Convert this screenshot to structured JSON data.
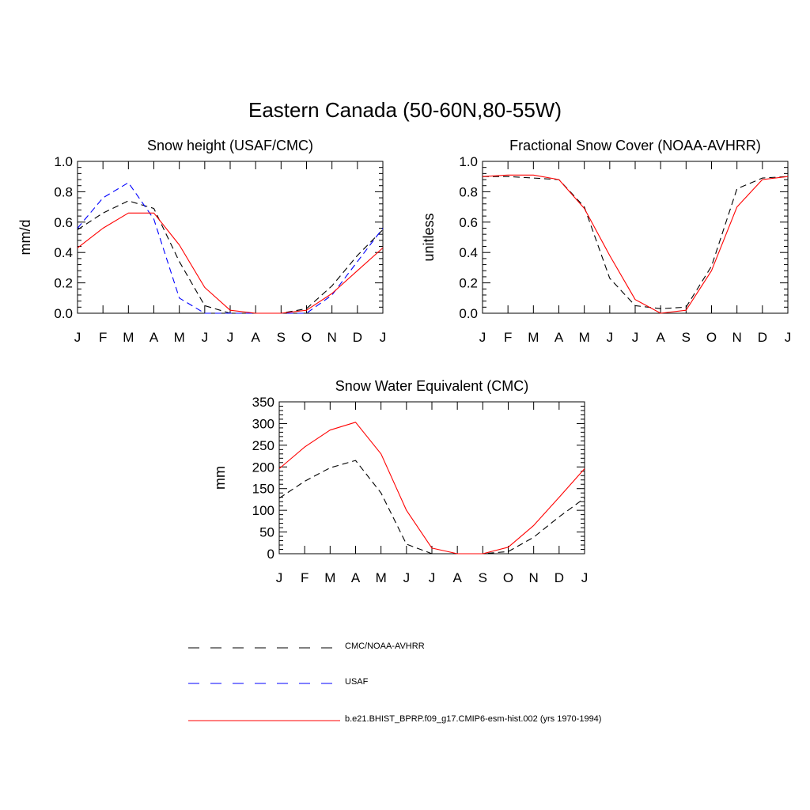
{
  "figure": {
    "title": "Eastern Canada (50-60N,80-55W)"
  },
  "legend": [
    {
      "label": "CMC/NOAA-AVHRR",
      "color": "#000000",
      "dash": "dashed"
    },
    {
      "label": "USAF",
      "color": "#0000ff",
      "dash": "dashed"
    },
    {
      "label": "b.e21.BHIST_BPRP.f09_g17.CMIP6-esm-hist.002 (yrs 1970-1994)",
      "color": "#ff0000",
      "dash": "solid"
    }
  ],
  "chart_data": [
    {
      "type": "line",
      "title": "Snow height (USAF/CMC)",
      "ylabel": "mm/d",
      "xlabel": "",
      "categories": [
        "J",
        "F",
        "M",
        "A",
        "M",
        "J",
        "J",
        "A",
        "S",
        "O",
        "N",
        "D",
        "J"
      ],
      "ylim": [
        0,
        1.0
      ],
      "yticks": [
        0,
        0.2,
        0.4,
        0.6,
        0.8,
        1.0
      ],
      "ytick_labels": [
        "0.0",
        "0.2",
        "0.4",
        "0.6",
        "0.8",
        "1.0"
      ],
      "series": [
        {
          "name": "CMC/NOAA-AVHRR",
          "color": "#000000",
          "dash": "dashed",
          "values": [
            0.55,
            0.66,
            0.74,
            0.69,
            0.34,
            0.05,
            0.0,
            0.0,
            0.0,
            0.03,
            0.18,
            0.38,
            0.55
          ]
        },
        {
          "name": "USAF",
          "color": "#0000ff",
          "dash": "dashed",
          "values": [
            0.56,
            0.76,
            0.86,
            0.62,
            0.1,
            0.0,
            0.0,
            0.0,
            0.0,
            0.0,
            0.12,
            0.34,
            0.56
          ]
        },
        {
          "name": "b.e21.BHIST_BPRP.f09_g17.CMIP6-esm-hist.002 (yrs 1970-1994)",
          "color": "#ff0000",
          "dash": "solid",
          "values": [
            0.43,
            0.56,
            0.66,
            0.66,
            0.45,
            0.17,
            0.02,
            0.0,
            0.0,
            0.02,
            0.13,
            0.28,
            0.43
          ]
        }
      ]
    },
    {
      "type": "line",
      "title": "Fractional Snow Cover (NOAA-AVHRR)",
      "ylabel": "unitless",
      "xlabel": "",
      "categories": [
        "J",
        "F",
        "M",
        "A",
        "M",
        "J",
        "J",
        "A",
        "S",
        "O",
        "N",
        "D",
        "J"
      ],
      "ylim": [
        0,
        1.0
      ],
      "yticks": [
        0,
        0.2,
        0.4,
        0.6,
        0.8,
        1.0
      ],
      "ytick_labels": [
        "0.0",
        "0.2",
        "0.4",
        "0.6",
        "0.8",
        "1.0"
      ],
      "series": [
        {
          "name": "CMC/NOAA-AVHRR",
          "color": "#000000",
          "dash": "dashed",
          "values": [
            0.9,
            0.9,
            0.89,
            0.88,
            0.7,
            0.23,
            0.05,
            0.03,
            0.04,
            0.31,
            0.82,
            0.89,
            0.9
          ]
        },
        {
          "name": "b.e21.BHIST_BPRP.f09_g17.CMIP6-esm-hist.002 (yrs 1970-1994)",
          "color": "#ff0000",
          "dash": "solid",
          "values": [
            0.9,
            0.91,
            0.91,
            0.88,
            0.69,
            0.38,
            0.09,
            0.0,
            0.02,
            0.28,
            0.7,
            0.88,
            0.9
          ]
        }
      ]
    },
    {
      "type": "line",
      "title": "Snow Water Equivalent (CMC)",
      "ylabel": "mm",
      "xlabel": "",
      "categories": [
        "J",
        "F",
        "M",
        "A",
        "M",
        "J",
        "J",
        "A",
        "S",
        "O",
        "N",
        "D",
        "J"
      ],
      "ylim": [
        0,
        350
      ],
      "yticks": [
        0,
        50,
        100,
        150,
        200,
        250,
        300,
        350
      ],
      "ytick_labels": [
        "0",
        "50",
        "100",
        "150",
        "200",
        "250",
        "300",
        "350"
      ],
      "series": [
        {
          "name": "CMC/NOAA-AVHRR",
          "color": "#000000",
          "dash": "dashed",
          "values": [
            128,
            167,
            198,
            215,
            140,
            22,
            0,
            0,
            0,
            5,
            38,
            85,
            128
          ]
        },
        {
          "name": "b.e21.BHIST_BPRP.f09_g17.CMIP6-esm-hist.002 (yrs 1970-1994)",
          "color": "#ff0000",
          "dash": "solid",
          "values": [
            196,
            246,
            285,
            303,
            230,
            100,
            13,
            0,
            0,
            15,
            65,
            130,
            196
          ]
        }
      ]
    }
  ]
}
